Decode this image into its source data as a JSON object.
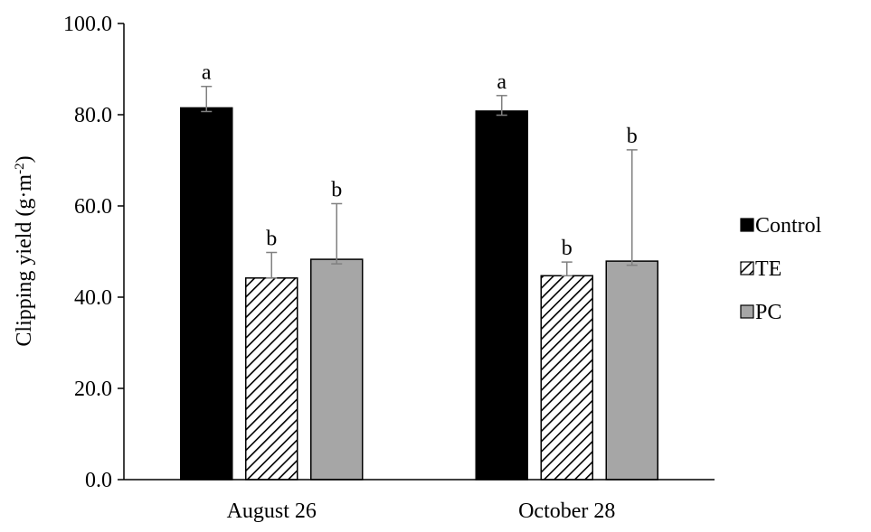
{
  "chart_data": {
    "type": "bar",
    "categories": [
      "August 26",
      "October 28"
    ],
    "series": [
      {
        "name": "Control",
        "values": [
          81.5,
          80.8
        ],
        "error_upper": [
          86.2,
          84.2
        ],
        "error_lower": [
          80.7,
          79.9
        ],
        "labels": [
          "a",
          "a"
        ],
        "color": "#000000",
        "pattern": "solid"
      },
      {
        "name": "TE",
        "values": [
          44.2,
          44.7
        ],
        "error_upper": [
          49.8,
          47.7
        ],
        "error_lower": [
          44.2,
          44.7
        ],
        "labels": [
          "b",
          "b"
        ],
        "color": "#ffffff",
        "pattern": "hatched"
      },
      {
        "name": "PC",
        "values": [
          48.3,
          47.9
        ],
        "error_upper": [
          60.5,
          72.3
        ],
        "error_lower": [
          47.3,
          47.0
        ],
        "labels": [
          "b",
          "b"
        ],
        "color": "#a6a6a6",
        "pattern": "solid"
      }
    ],
    "ylabel": "Clipping yield (g·m",
    "ylabel_sup": "-2",
    "ylabel_close": ")",
    "ylim": [
      0,
      100
    ],
    "yticks": [
      "0.0",
      "20.0",
      "40.0",
      "60.0",
      "80.0",
      "100.0"
    ],
    "ytick_values": [
      0,
      20,
      40,
      60,
      80,
      100
    ],
    "grid": false,
    "legend_position": "right"
  }
}
